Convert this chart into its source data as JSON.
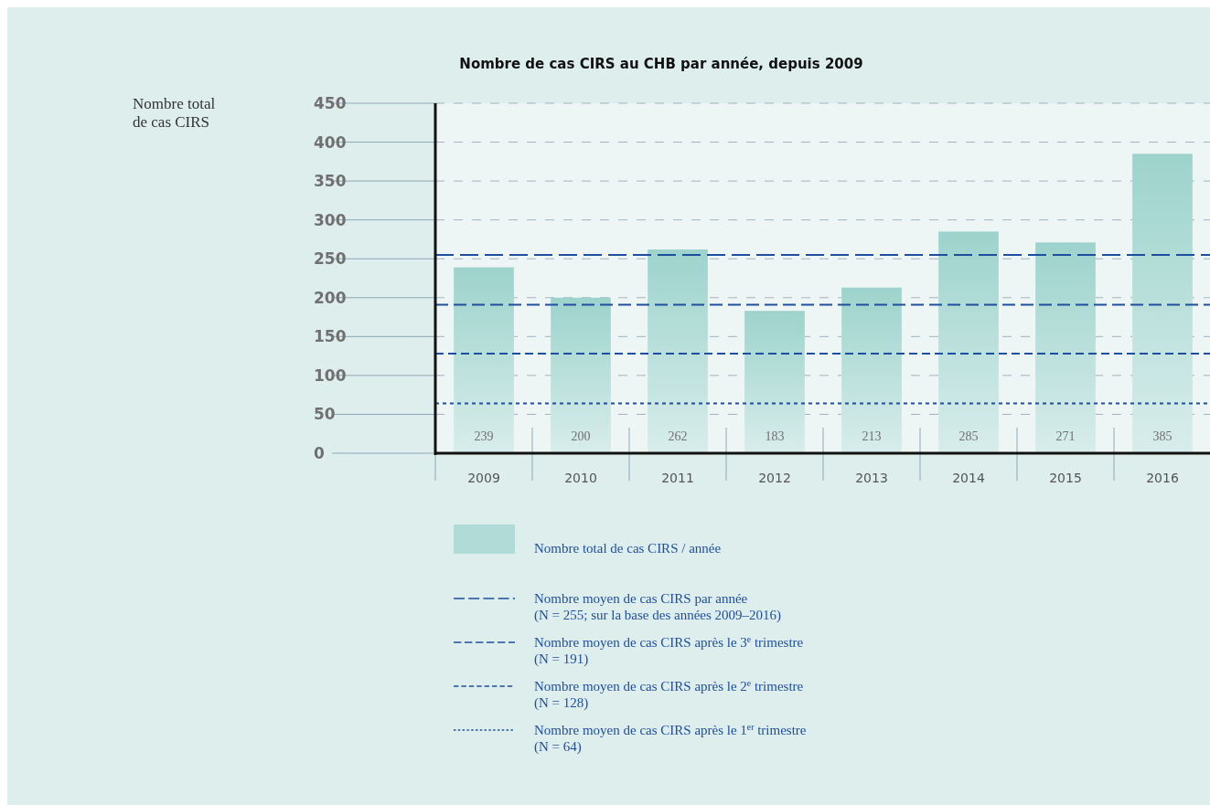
{
  "chart_data": {
    "type": "bar",
    "title": "Nombre de cas CIRS au CHB par année, depuis 2009",
    "annotations": [
      "Nombre total de cas CIRS"
    ],
    "categories": [
      "2009",
      "2010",
      "2011",
      "2012",
      "2013",
      "2014",
      "2015",
      "2016"
    ],
    "series": [
      {
        "name": "Nombre total de cas CIRS / année",
        "color": "#9dd3cc",
        "values": [
          239,
          200,
          262,
          183,
          213,
          285,
          271,
          385
        ]
      }
    ],
    "ylim": [
      0,
      450
    ],
    "yticks": [
      0,
      50,
      100,
      150,
      200,
      250,
      300,
      350,
      400,
      450
    ],
    "grid": "y",
    "data_labels": true,
    "legend": "bottom",
    "ref_lines": [
      {
        "axis": "y",
        "value": 255,
        "label": "Nombre moyen de cas CIRS par année (N = 255; sur la base des années 2009–2016)",
        "color": "#1f4e9e",
        "line_style": "dashed"
      },
      {
        "axis": "y",
        "value": 191,
        "label": "Nombre moyen de cas CIRS après le 3$^{e}$ trimestre (N = 191)",
        "color": "#1f4e9e",
        "line_style": "dashed"
      },
      {
        "axis": "y",
        "value": 128,
        "label": "Nombre moyen de cas CIRS après le 2$^{e}$ trimestre (N = 128)",
        "color": "#1f4e9e",
        "line_style": "dashed"
      },
      {
        "axis": "y",
        "value": 64,
        "label": "Nombre moyen de cas CIRS après le 1$^{er}$ trimestre (N = 64)",
        "color": "#1f4e9e",
        "line_style": "dotted"
      }
    ]
  }
}
